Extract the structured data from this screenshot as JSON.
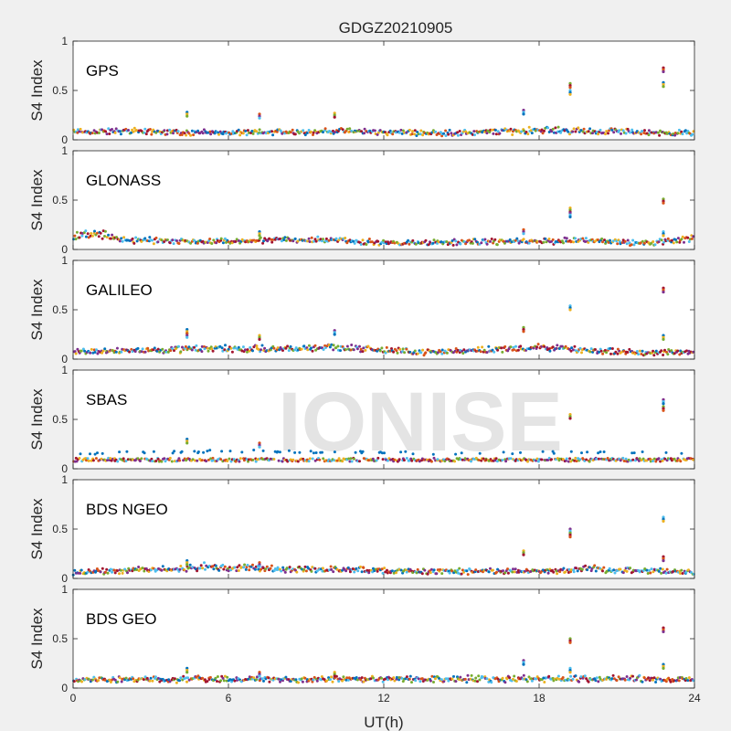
{
  "chart_data": {
    "type": "scatter",
    "title": "GDGZ20210905",
    "xlabel": "UT(h)",
    "ylabel": "S4 Index",
    "watermark": "IONISE",
    "xlim": [
      0,
      24
    ],
    "ylim": [
      0,
      1
    ],
    "xticks": [
      "0",
      "6",
      "12",
      "18",
      "24"
    ],
    "yticks": [
      "0",
      "0.5",
      "1"
    ],
    "grid": false,
    "colors": [
      "#0072BD",
      "#D95319",
      "#EDB120",
      "#7E2F8E",
      "#77AC30",
      "#4DBEEE",
      "#A2142F"
    ],
    "panels": [
      {
        "label": "GPS",
        "baseline": 0.07,
        "baseline_points": [
          [
            0,
            0.08
          ],
          [
            2,
            0.09
          ],
          [
            4,
            0.08
          ],
          [
            6,
            0.07
          ],
          [
            8,
            0.08
          ],
          [
            10,
            0.09
          ],
          [
            12,
            0.08
          ],
          [
            14,
            0.07
          ],
          [
            16,
            0.08
          ],
          [
            18,
            0.1
          ],
          [
            20,
            0.09
          ],
          [
            22,
            0.08
          ],
          [
            24,
            0.07
          ]
        ],
        "spikes": [
          [
            4.4,
            0.28
          ],
          [
            7.2,
            0.26
          ],
          [
            10.1,
            0.27
          ],
          [
            17.4,
            0.3
          ],
          [
            19.2,
            0.57
          ],
          [
            19.2,
            0.5
          ],
          [
            22.8,
            0.73
          ],
          [
            22.8,
            0.58
          ]
        ]
      },
      {
        "label": "GLONASS",
        "baseline": 0.07,
        "baseline_points": [
          [
            0,
            0.14
          ],
          [
            1,
            0.16
          ],
          [
            2,
            0.1
          ],
          [
            4,
            0.08
          ],
          [
            6,
            0.08
          ],
          [
            8,
            0.1
          ],
          [
            10,
            0.1
          ],
          [
            12,
            0.07
          ],
          [
            14,
            0.07
          ],
          [
            16,
            0.08
          ],
          [
            18,
            0.08
          ],
          [
            20,
            0.1
          ],
          [
            22,
            0.06
          ],
          [
            24,
            0.12
          ]
        ],
        "spikes": [
          [
            7.2,
            0.18
          ],
          [
            17.4,
            0.2
          ],
          [
            19.2,
            0.42
          ],
          [
            19.2,
            0.37
          ],
          [
            22.8,
            0.51
          ],
          [
            22.8,
            0.18
          ]
        ]
      },
      {
        "label": "GALILEO",
        "baseline": 0.08,
        "baseline_points": [
          [
            0,
            0.08
          ],
          [
            2,
            0.09
          ],
          [
            4,
            0.1
          ],
          [
            6,
            0.11
          ],
          [
            8,
            0.1
          ],
          [
            10,
            0.13
          ],
          [
            12,
            0.09
          ],
          [
            14,
            0.07
          ],
          [
            16,
            0.1
          ],
          [
            18,
            0.12
          ],
          [
            20,
            0.09
          ],
          [
            22,
            0.07
          ],
          [
            24,
            0.07
          ]
        ],
        "spikes": [
          [
            4.4,
            0.3
          ],
          [
            4.4,
            0.26
          ],
          [
            7.2,
            0.24
          ],
          [
            10.1,
            0.29
          ],
          [
            17.4,
            0.32
          ],
          [
            19.2,
            0.54
          ],
          [
            22.8,
            0.72
          ],
          [
            22.8,
            0.24
          ]
        ]
      },
      {
        "label": "SBAS",
        "baseline": 0.09,
        "baseline_points": [
          [
            0,
            0.16
          ],
          [
            4,
            0.17
          ],
          [
            6,
            0.18
          ],
          [
            12,
            0.16
          ],
          [
            18,
            0.16
          ],
          [
            24,
            0.17
          ]
        ],
        "spikes": [
          [
            4.4,
            0.3
          ],
          [
            7.2,
            0.26
          ],
          [
            19.2,
            0.55
          ],
          [
            22.8,
            0.7
          ],
          [
            22.8,
            0.63
          ]
        ]
      },
      {
        "label": "BDS NGEO",
        "baseline": 0.07,
        "baseline_points": [
          [
            0,
            0.06
          ],
          [
            2,
            0.08
          ],
          [
            4,
            0.1
          ],
          [
            5,
            0.12
          ],
          [
            8,
            0.1
          ],
          [
            10,
            0.09
          ],
          [
            12,
            0.08
          ],
          [
            14,
            0.07
          ],
          [
            16,
            0.08
          ],
          [
            18,
            0.07
          ],
          [
            20,
            0.1
          ],
          [
            22,
            0.08
          ],
          [
            24,
            0.06
          ]
        ],
        "spikes": [
          [
            4.4,
            0.18
          ],
          [
            7.2,
            0.16
          ],
          [
            17.4,
            0.28
          ],
          [
            19.2,
            0.5
          ],
          [
            19.2,
            0.46
          ],
          [
            22.8,
            0.62
          ],
          [
            22.8,
            0.22
          ]
        ]
      },
      {
        "label": "BDS GEO",
        "baseline": 0.08,
        "baseline_points": [
          [
            0,
            0.09
          ],
          [
            6,
            0.09
          ],
          [
            12,
            0.09
          ],
          [
            18,
            0.1
          ],
          [
            24,
            0.09
          ]
        ],
        "spikes": [
          [
            4.4,
            0.2
          ],
          [
            7.2,
            0.16
          ],
          [
            10.1,
            0.16
          ],
          [
            17.4,
            0.28
          ],
          [
            19.2,
            0.5
          ],
          [
            19.2,
            0.2
          ],
          [
            22.8,
            0.61
          ],
          [
            22.8,
            0.24
          ]
        ]
      }
    ]
  }
}
